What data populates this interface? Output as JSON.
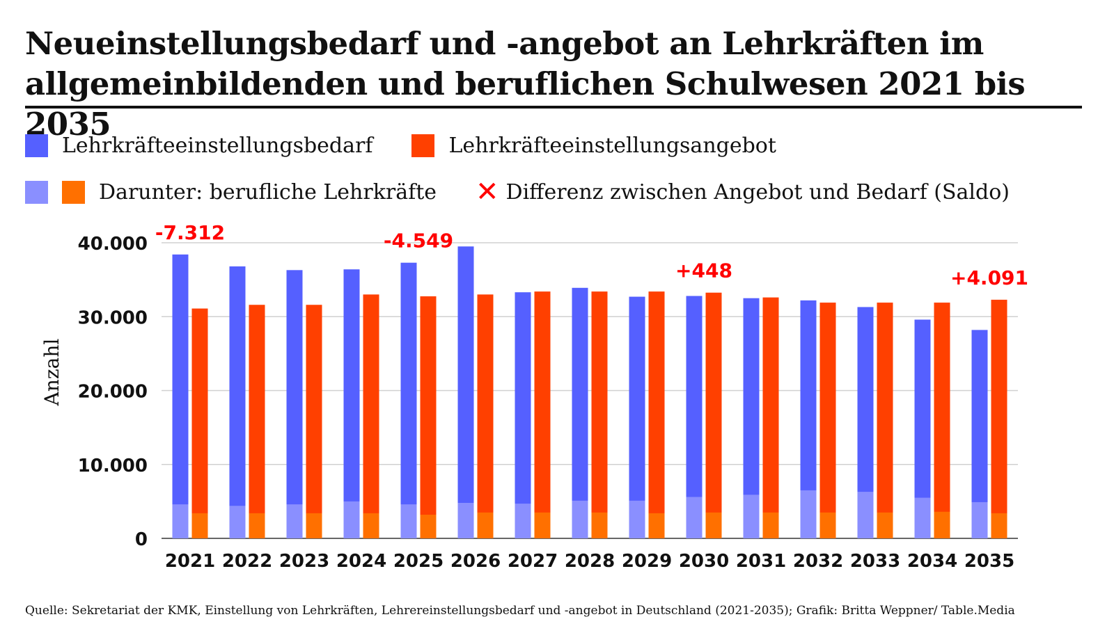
{
  "title_line1": "Neueinstellungsbedarf und -angebot an Lehrkräften im",
  "title_line2": "allgemeinbildenden und beruflichen Schulwesen 2021 bis 2035",
  "legend": {
    "bedarf": "Lehrkräfteeinstellungsbedarf",
    "angebot": "Lehrkräfteeinstellungsangebot",
    "beruflich": "Darunter: berufliche Lehrkräfte",
    "saldo": "Differenz zwischen Angebot und Bedarf (Saldo)"
  },
  "colors": {
    "bedarf": "#5560ff",
    "angebot": "#ff4000",
    "bedarf_beruflich": "#8a8fff",
    "angebot_beruflich": "#ff7000",
    "saldo": "#ff0000"
  },
  "source": "Quelle: Sekretariat der KMK, Einstellung von Lehrkräften, Lehrereinstellungsbedarf und -angebot in Deutschland (2021-2035); Grafik: Britta Weppner/ Table.Media",
  "chart_data": {
    "type": "bar",
    "title": "Neueinstellungsbedarf und -angebot an Lehrkräften im allgemeinbildenden und beruflichen Schulwesen 2021 bis 2035",
    "xlabel": "",
    "ylabel": "Anzahl",
    "ylim": [
      0,
      40000
    ],
    "yticks": [
      0,
      10000,
      20000,
      30000,
      40000
    ],
    "ytick_labels": [
      "0",
      "10.000",
      "20.000",
      "30.000",
      "40.000"
    ],
    "grid": true,
    "legend_position": "top",
    "categories": [
      "2021",
      "2022",
      "2023",
      "2024",
      "2025",
      "2026",
      "2027",
      "2028",
      "2029",
      "2030",
      "2031",
      "2032",
      "2033",
      "2034",
      "2035"
    ],
    "series": [
      {
        "name": "Lehrkräfteeinstellungsbedarf",
        "values": [
          38412,
          36800,
          36300,
          36400,
          37300,
          39500,
          33300,
          33900,
          32700,
          32800,
          32500,
          32200,
          31300,
          29600,
          28200
        ]
      },
      {
        "name": "Lehrkräfteeinstellungsangebot",
        "values": [
          31100,
          31600,
          31600,
          33000,
          32751,
          33000,
          33400,
          33400,
          33400,
          33248,
          32600,
          31900,
          31900,
          31900,
          32291
        ]
      },
      {
        "name": "Darunter: berufliche Lehrkräfte (Bedarf)",
        "values": [
          4600,
          4400,
          4600,
          5000,
          4600,
          4800,
          4700,
          5100,
          5100,
          5600,
          5900,
          6500,
          6300,
          5500,
          4900
        ]
      },
      {
        "name": "Darunter: berufliche Lehrkräfte (Angebot)",
        "values": [
          3400,
          3400,
          3400,
          3400,
          3200,
          3500,
          3500,
          3500,
          3400,
          3500,
          3500,
          3500,
          3500,
          3600,
          3400
        ]
      }
    ],
    "annotations": [
      {
        "category": "2021",
        "label": "-7.312"
      },
      {
        "category": "2025",
        "label": "-4.549"
      },
      {
        "category": "2030",
        "label": "+448"
      },
      {
        "category": "2035",
        "label": "+4.091"
      }
    ]
  }
}
